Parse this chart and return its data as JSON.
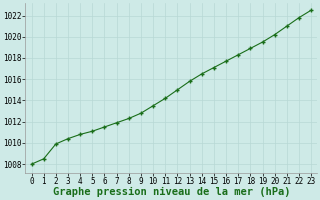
{
  "x": [
    0,
    1,
    2,
    3,
    4,
    5,
    6,
    7,
    8,
    9,
    10,
    11,
    12,
    13,
    14,
    15,
    16,
    17,
    18,
    19,
    20,
    21,
    22,
    23
  ],
  "y": [
    1008.0,
    1008.5,
    1009.9,
    1010.4,
    1010.8,
    1011.1,
    1011.5,
    1011.9,
    1012.3,
    1012.8,
    1013.5,
    1014.2,
    1015.0,
    1015.8,
    1016.5,
    1017.1,
    1017.7,
    1018.3,
    1018.9,
    1019.5,
    1020.2,
    1021.0,
    1021.8,
    1022.5
  ],
  "line_color": "#1a6e1a",
  "marker": "+",
  "bg_color": "#ceeae7",
  "grid_color": "#b8d8d5",
  "xlabel": "Graphe pression niveau de la mer (hPa)",
  "xlabel_fontsize": 7.5,
  "ylabel_ticks": [
    1008,
    1010,
    1012,
    1014,
    1016,
    1018,
    1020,
    1022
  ],
  "xticks": [
    0,
    1,
    2,
    3,
    4,
    5,
    6,
    7,
    8,
    9,
    10,
    11,
    12,
    13,
    14,
    15,
    16,
    17,
    18,
    19,
    20,
    21,
    22,
    23
  ],
  "xlim": [
    -0.5,
    23.5
  ],
  "ylim": [
    1007.2,
    1023.2
  ],
  "tick_fontsize": 5.5,
  "line_width": 0.8,
  "marker_size": 3.5,
  "fig_width": 3.2,
  "fig_height": 2.0,
  "dpi": 100
}
